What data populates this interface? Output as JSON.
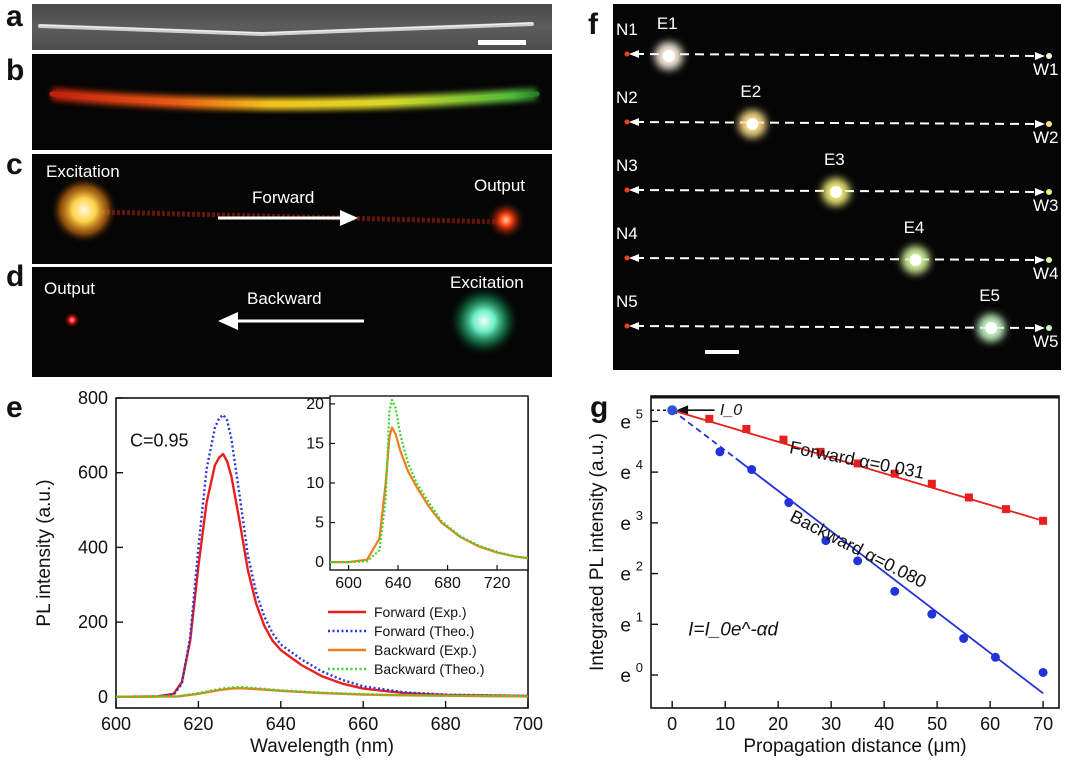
{
  "panels": {
    "a": {
      "letter": "a"
    },
    "b": {
      "letter": "b"
    },
    "c": {
      "letter": "c",
      "excitation": "Excitation",
      "direction": "Forward",
      "output": "Output"
    },
    "d": {
      "letter": "d",
      "output": "Output",
      "direction": "Backward",
      "excitation": "Excitation"
    },
    "e": {
      "letter": "e"
    },
    "f": {
      "letter": "f",
      "rows": [
        {
          "n": "N1",
          "e": "E1",
          "w": "W1",
          "e_pos": 0.09,
          "color": "#fff1e0"
        },
        {
          "n": "N2",
          "e": "E2",
          "w": "W2",
          "e_pos": 0.3,
          "color": "#ffe08a"
        },
        {
          "n": "N3",
          "e": "E3",
          "w": "W3",
          "e_pos": 0.51,
          "color": "#f2f07a"
        },
        {
          "n": "N4",
          "e": "E4",
          "w": "W4",
          "e_pos": 0.71,
          "color": "#d9f7a0"
        },
        {
          "n": "N5",
          "e": "E5",
          "w": "W5",
          "e_pos": 0.9,
          "color": "#c8f8c8"
        }
      ]
    },
    "g": {
      "letter": "g"
    }
  },
  "colors": {
    "forward_exp": "#e8201d",
    "forward_theo": "#2a35d6",
    "backward_exp": "#ef7d1a",
    "backward_theo": "#3ad62a",
    "g_forward": "#e8201d",
    "g_backward": "#2332d9"
  },
  "chart_data": [
    {
      "id": "e-main",
      "type": "line",
      "xlabel": "Wavelength (nm)",
      "ylabel": "PL intensity (a.u.)",
      "xlim": [
        600,
        700
      ],
      "ylim": [
        -30,
        800
      ],
      "xticks": [
        600,
        620,
        640,
        660,
        680,
        700
      ],
      "yticks": [
        0,
        200,
        400,
        600,
        800
      ],
      "annotation": "C=0.95",
      "legend_position": "bottom-right",
      "series": [
        {
          "name": "Forward (Exp.)",
          "style": "solid",
          "color": "#e8201d",
          "x": [
            600,
            610,
            614,
            616,
            618,
            620,
            622,
            624,
            625,
            626,
            627,
            628,
            630,
            632,
            634,
            636,
            638,
            640,
            645,
            650,
            655,
            660,
            670,
            680,
            700
          ],
          "y": [
            0,
            1,
            8,
            40,
            150,
            350,
            520,
            620,
            640,
            650,
            630,
            590,
            470,
            340,
            250,
            190,
            150,
            125,
            85,
            55,
            35,
            22,
            10,
            5,
            2
          ]
        },
        {
          "name": "Forward (Theo.)",
          "style": "dotted",
          "color": "#2a35d6",
          "x": [
            600,
            610,
            614,
            616,
            618,
            620,
            622,
            624,
            625,
            626,
            627,
            628,
            630,
            632,
            634,
            636,
            638,
            640,
            645,
            650,
            655,
            660,
            670,
            680,
            700
          ],
          "y": [
            0,
            1,
            6,
            35,
            160,
            400,
            610,
            720,
            745,
            755,
            740,
            690,
            540,
            380,
            280,
            215,
            170,
            140,
            100,
            68,
            45,
            28,
            12,
            6,
            2
          ]
        },
        {
          "name": "Backward (Exp.)",
          "style": "solid",
          "color": "#ef7d1a",
          "x": [
            600,
            615,
            620,
            625,
            628,
            630,
            632,
            635,
            640,
            650,
            660,
            670,
            680,
            700
          ],
          "y": [
            0,
            1,
            8,
            18,
            22,
            23,
            22,
            20,
            16,
            10,
            6,
            4,
            3,
            1
          ]
        },
        {
          "name": "Backward (Theo.)",
          "style": "dotted",
          "color": "#3ad62a",
          "x": [
            600,
            615,
            620,
            625,
            628,
            630,
            632,
            635,
            640,
            650,
            660,
            670,
            680,
            700
          ],
          "y": [
            0,
            1,
            10,
            21,
            25,
            26,
            25,
            22,
            17,
            11,
            7,
            4,
            3,
            1
          ]
        }
      ]
    },
    {
      "id": "e-inset",
      "type": "line",
      "xlim": [
        585,
        745
      ],
      "ylim": [
        -1,
        21
      ],
      "xticks": [
        600,
        640,
        680,
        720
      ],
      "yticks": [
        0,
        5,
        10,
        15,
        20
      ],
      "series": [
        {
          "name": "Backward (Exp.)",
          "style": "solid",
          "color": "#ef7d1a",
          "x": [
            585,
            600,
            615,
            625,
            630,
            633,
            635,
            638,
            642,
            648,
            655,
            665,
            675,
            690,
            705,
            720,
            735,
            745
          ],
          "y": [
            0,
            0,
            0.3,
            3,
            10,
            15.8,
            17,
            16.2,
            14,
            11.5,
            9.5,
            7,
            5,
            3.2,
            2,
            1.2,
            0.7,
            0.5
          ]
        },
        {
          "name": "Backward (Theo.)",
          "style": "dotted",
          "color": "#3ad62a",
          "x": [
            585,
            600,
            615,
            625,
            630,
            633,
            635,
            638,
            642,
            648,
            655,
            665,
            675,
            690,
            705,
            720,
            735,
            745
          ],
          "y": [
            0,
            0,
            0.1,
            1.5,
            8,
            19,
            20.5,
            19.5,
            16,
            12.5,
            10,
            7.5,
            5.2,
            3.3,
            2.1,
            1.3,
            0.7,
            0.5
          ]
        }
      ]
    },
    {
      "id": "g",
      "type": "scatter",
      "xlabel": "Propagation distance (μm)",
      "ylabel": "Integrated PL intensity (a.u.)",
      "xlim": [
        -4,
        73
      ],
      "ylim": [
        -0.65,
        5.5
      ],
      "xticks": [
        0,
        10,
        20,
        30,
        40,
        50,
        60,
        70
      ],
      "yticks": [
        0,
        1,
        2,
        3,
        4,
        5
      ],
      "ytick_labels": [
        "e^0",
        "e^1",
        "e^2",
        "e^3",
        "e^4",
        "e^5"
      ],
      "i0_label": "I_0",
      "i0_value": 5.22,
      "equation": "I=I_0e^-αd",
      "series": [
        {
          "name": "Forward",
          "alpha_label": "α=0.031",
          "color": "#e8201d",
          "marker": "square",
          "x": [
            0,
            7,
            14,
            21,
            28,
            35,
            42,
            49,
            56,
            63,
            70
          ],
          "y": [
            5.22,
            5.05,
            4.85,
            4.64,
            4.4,
            4.17,
            3.97,
            3.77,
            3.5,
            3.27,
            3.04
          ]
        },
        {
          "name": "Backward",
          "alpha_label": "α=0.080",
          "color": "#2332d9",
          "marker": "circle",
          "x": [
            0,
            9,
            15,
            22,
            29,
            35,
            42,
            49,
            55,
            61,
            70
          ],
          "y": [
            5.22,
            4.4,
            4.05,
            3.4,
            2.65,
            2.25,
            1.65,
            1.2,
            0.72,
            0.35,
            0.05
          ]
        }
      ]
    }
  ]
}
